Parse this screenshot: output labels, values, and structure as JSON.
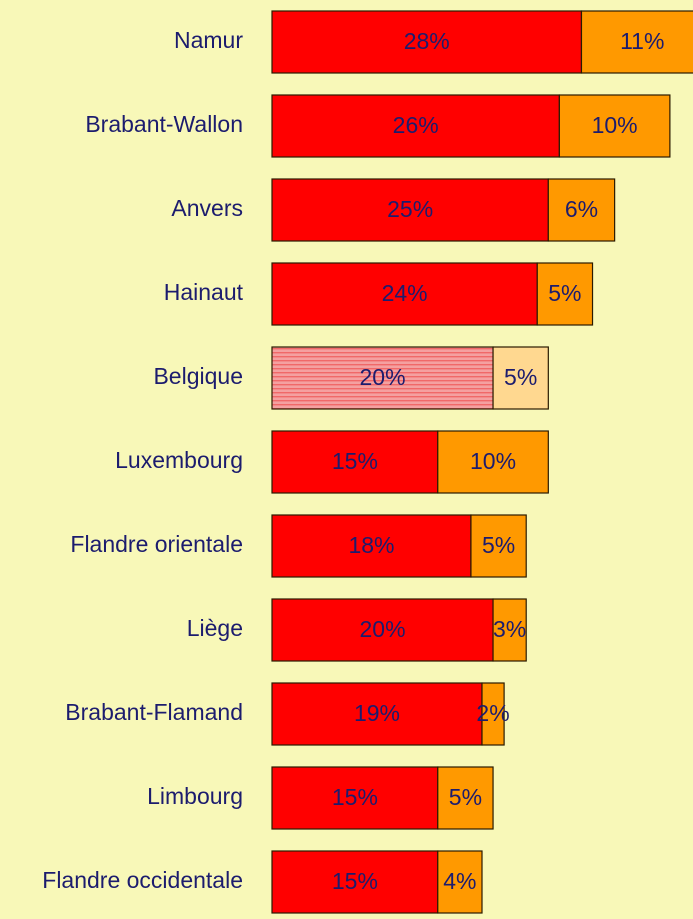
{
  "chart_data": {
    "type": "bar",
    "orientation": "horizontal",
    "stacked": true,
    "categories": [
      "Namur",
      "Brabant-Wallon",
      "Anvers",
      "Hainaut",
      "Belgique",
      "Luxembourg",
      "Flandre orientale",
      "Liège",
      "Brabant-Flamand",
      "Limbourg",
      "Flandre occidentale"
    ],
    "series": [
      {
        "color": "#ff0000",
        "highlight_color": "#f4a0a0",
        "values": [
          28,
          26,
          25,
          24,
          20,
          15,
          18,
          20,
          19,
          15,
          15
        ],
        "value_labels": [
          "28%",
          "26%",
          "25%",
          "24%",
          "20%",
          "15%",
          "18%",
          "20%",
          "19%",
          "15%",
          "15%"
        ]
      },
      {
        "color": "#ff9900",
        "highlight_color": "#ffd890",
        "values": [
          11,
          10,
          6,
          5,
          5,
          10,
          5,
          3,
          2,
          5,
          4
        ],
        "value_labels": [
          "11%",
          "10%",
          "6%",
          "5%",
          "5%",
          "10%",
          "5%",
          "3%",
          "2%",
          "5%",
          "4%"
        ]
      }
    ],
    "highlight": "Belgique",
    "xlim": [
      0,
      38
    ]
  }
}
